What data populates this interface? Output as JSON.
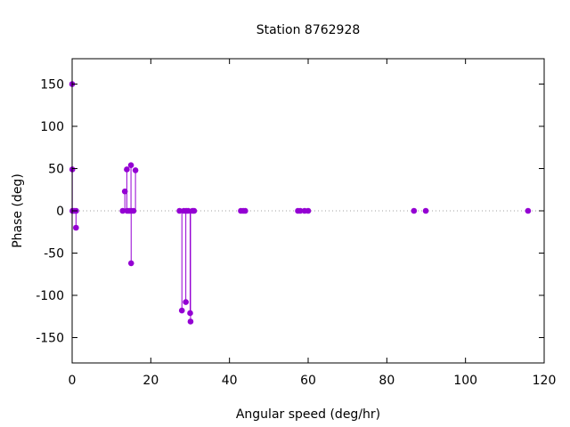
{
  "chart_data": {
    "type": "scatter",
    "style": "impulses-with-points",
    "title": "Station 8762928",
    "xlabel": "Angular speed (deg/hr)",
    "ylabel": "Phase (deg)",
    "xlim": [
      0,
      120
    ],
    "ylim": [
      -180,
      180
    ],
    "xticks": [
      0,
      20,
      40,
      60,
      80,
      100,
      120
    ],
    "yticks": [
      -150,
      -100,
      -50,
      0,
      50,
      100,
      150
    ],
    "zero_line": true,
    "grid": false,
    "color": "#9400d3",
    "points": [
      {
        "x": 0.0,
        "y": 150
      },
      {
        "x": 0.04,
        "y": 49
      },
      {
        "x": 0.08,
        "y": 0
      },
      {
        "x": 0.5,
        "y": 0
      },
      {
        "x": 0.98,
        "y": -20
      },
      {
        "x": 1.0,
        "y": 0
      },
      {
        "x": 12.85,
        "y": 0
      },
      {
        "x": 13.4,
        "y": 23
      },
      {
        "x": 13.9,
        "y": 49
      },
      {
        "x": 14.0,
        "y": 0
      },
      {
        "x": 14.5,
        "y": 0
      },
      {
        "x": 14.96,
        "y": 54
      },
      {
        "x": 15.0,
        "y": -62
      },
      {
        "x": 15.04,
        "y": 0
      },
      {
        "x": 15.6,
        "y": 0
      },
      {
        "x": 16.1,
        "y": 48
      },
      {
        "x": 27.3,
        "y": 0
      },
      {
        "x": 27.9,
        "y": -118
      },
      {
        "x": 28.4,
        "y": 0
      },
      {
        "x": 28.9,
        "y": -108
      },
      {
        "x": 29.0,
        "y": 0
      },
      {
        "x": 29.5,
        "y": 0
      },
      {
        "x": 30.0,
        "y": -121
      },
      {
        "x": 30.1,
        "y": -131
      },
      {
        "x": 30.6,
        "y": 0
      },
      {
        "x": 31.0,
        "y": 0
      },
      {
        "x": 42.9,
        "y": 0
      },
      {
        "x": 43.5,
        "y": 0
      },
      {
        "x": 44.0,
        "y": 0
      },
      {
        "x": 57.4,
        "y": 0
      },
      {
        "x": 58.0,
        "y": 0
      },
      {
        "x": 59.1,
        "y": 0
      },
      {
        "x": 60.0,
        "y": 0
      },
      {
        "x": 86.9,
        "y": 0
      },
      {
        "x": 89.9,
        "y": 0
      },
      {
        "x": 115.9,
        "y": 0
      }
    ]
  }
}
